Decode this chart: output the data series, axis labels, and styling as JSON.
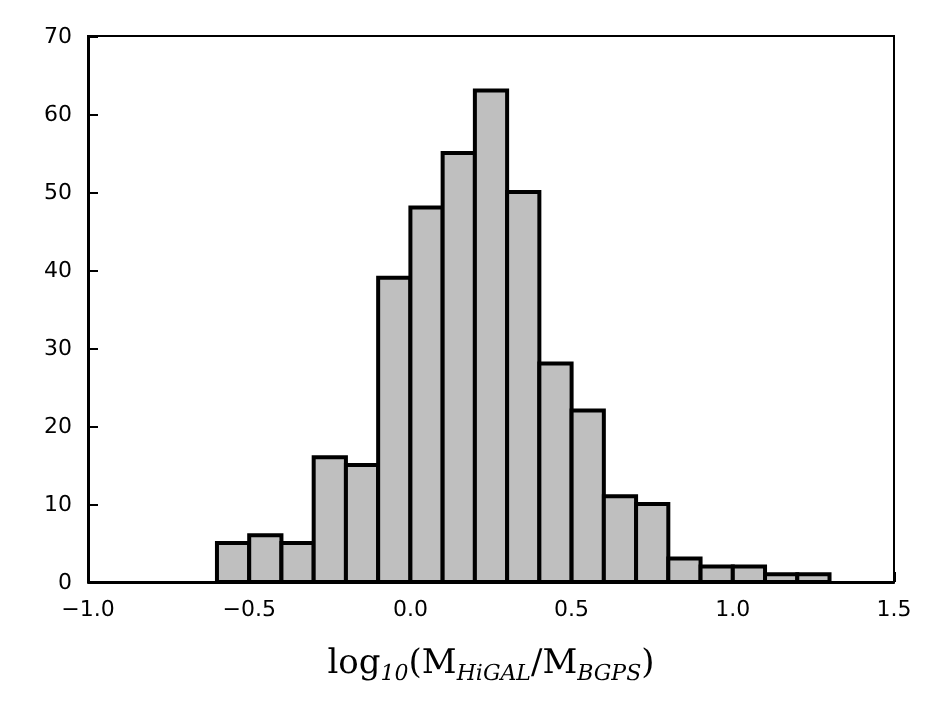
{
  "chart_data": {
    "type": "histogram",
    "xlabel": "log$_{10}$(M$_{HiGAL}$/M$_{BGPS}$)",
    "bins": [
      -0.6,
      -0.5,
      -0.4,
      -0.3,
      -0.2,
      -0.1,
      0.0,
      0.1,
      0.2,
      0.3,
      0.4,
      0.5,
      0.6,
      0.7,
      0.8,
      0.9,
      1.0,
      1.1,
      1.2,
      1.3
    ],
    "values": [
      5,
      6,
      5,
      16,
      15,
      39,
      48,
      55,
      63,
      50,
      28,
      22,
      11,
      10,
      3,
      2,
      2,
      1,
      1
    ],
    "color": "#bfbfbf",
    "xlim": [
      -1.0,
      1.5
    ],
    "xticks": [
      {
        "value": -1.0,
        "label": "−1.0"
      },
      {
        "value": -0.5,
        "label": "−0.5"
      },
      {
        "value": 0.0,
        "label": "0.0"
      },
      0.5,
      {
        "value": 1.0,
        "label": "1.0"
      },
      1.5
    ],
    "ylim": [
      0,
      70
    ],
    "yticks": [
      0,
      10,
      20,
      30,
      40,
      50,
      60,
      70
    ],
    "grid": false
  }
}
